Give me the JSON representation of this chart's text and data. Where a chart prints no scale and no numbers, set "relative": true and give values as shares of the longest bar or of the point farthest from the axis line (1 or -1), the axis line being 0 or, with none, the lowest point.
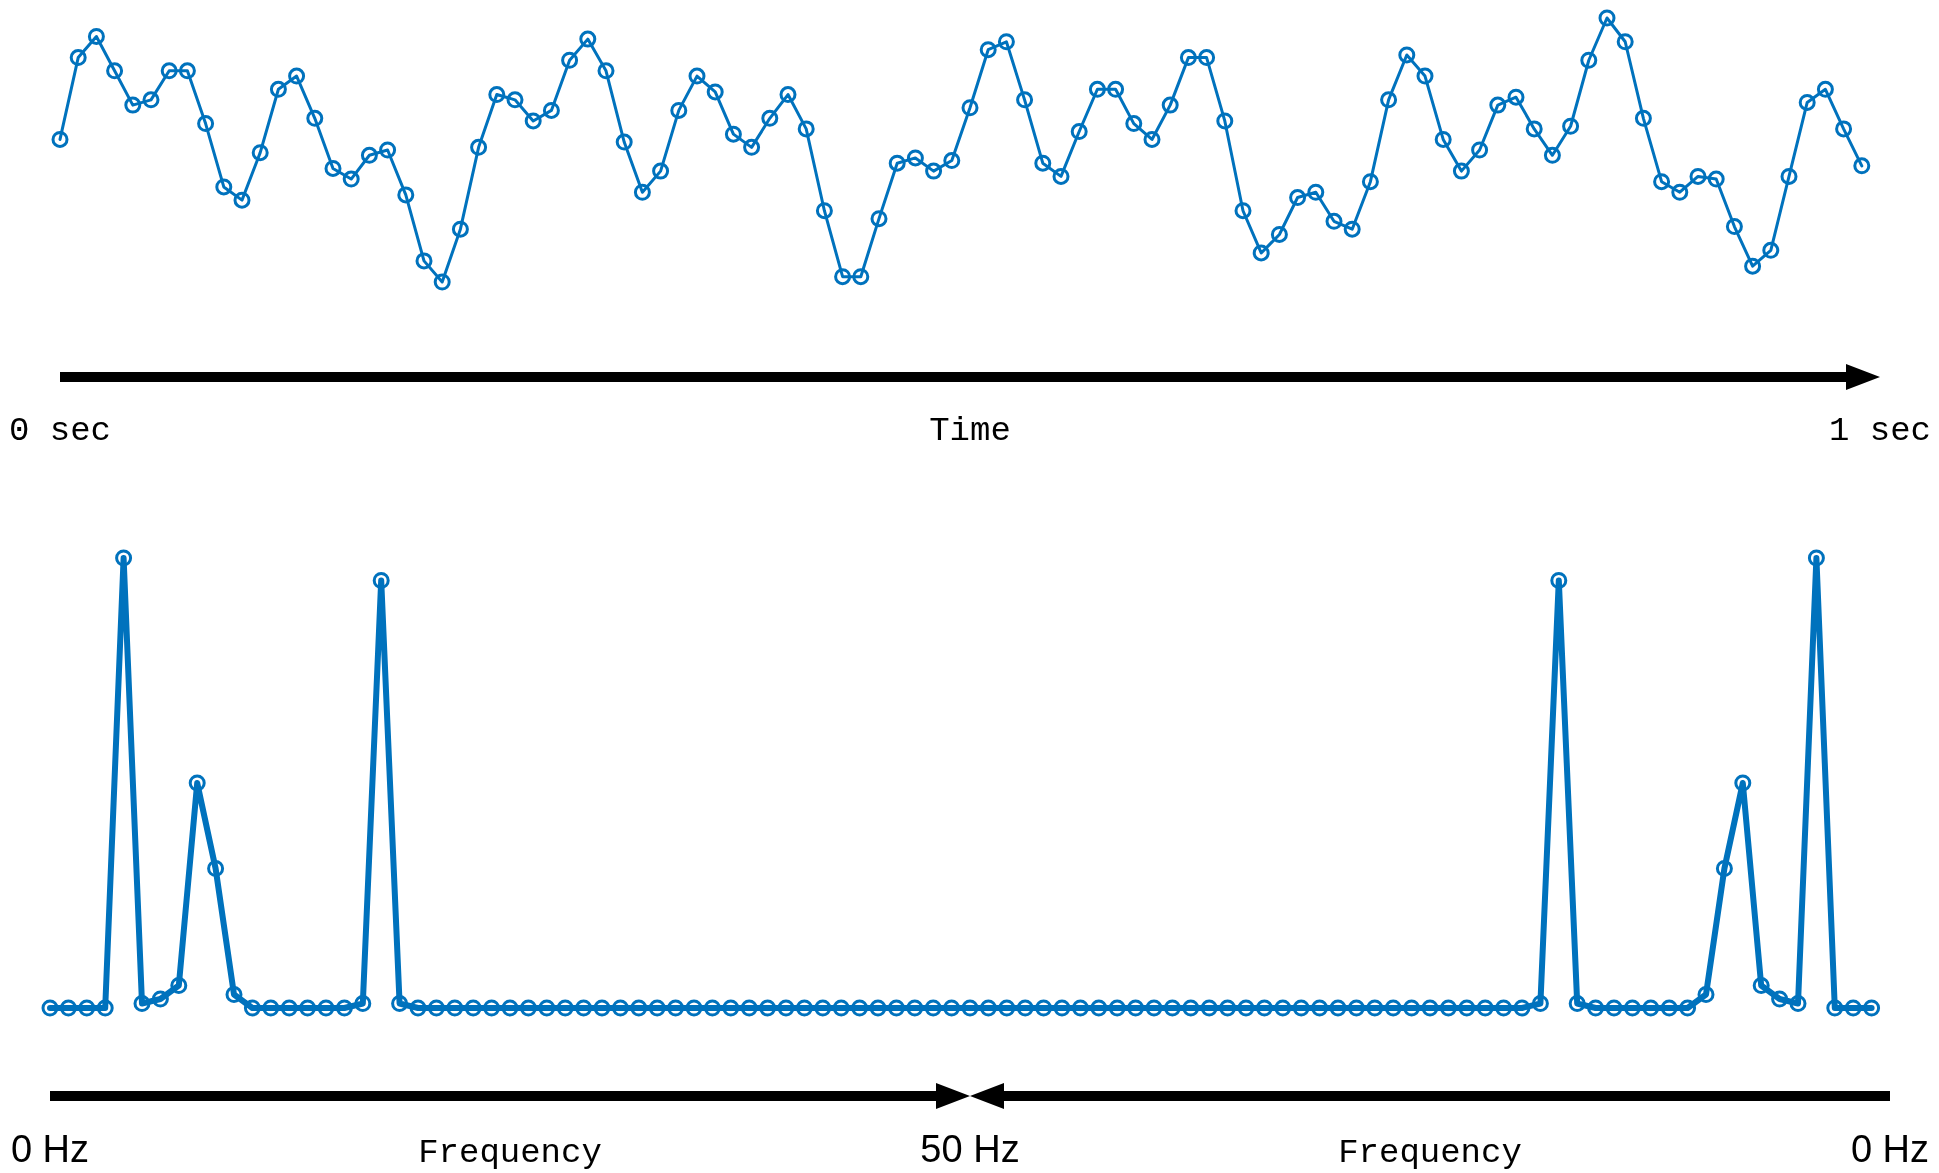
{
  "chart_data": [
    {
      "type": "line",
      "relative": true,
      "xlabel": "Time",
      "xlim": [
        0,
        1
      ],
      "xticks": [
        {
          "value": 0,
          "label": "0 sec"
        },
        {
          "value": 1,
          "label": "1 sec"
        }
      ],
      "marker": "circle",
      "line_style": "solid",
      "x": [
        0,
        0.01,
        0.02,
        0.03,
        0.04,
        0.05,
        0.06,
        0.07,
        0.08,
        0.09,
        0.1,
        0.11,
        0.12,
        0.13,
        0.14,
        0.15,
        0.16,
        0.17,
        0.18,
        0.19,
        0.2,
        0.21,
        0.22,
        0.23,
        0.24,
        0.25,
        0.26,
        0.27,
        0.28,
        0.29,
        0.3,
        0.31,
        0.32,
        0.33,
        0.34,
        0.35,
        0.36,
        0.37,
        0.38,
        0.39,
        0.4,
        0.41,
        0.42,
        0.43,
        0.44,
        0.45,
        0.46,
        0.47,
        0.48,
        0.49,
        0.5,
        0.51,
        0.52,
        0.53,
        0.54,
        0.55,
        0.56,
        0.57,
        0.58,
        0.59,
        0.6,
        0.61,
        0.62,
        0.63,
        0.64,
        0.65,
        0.66,
        0.67,
        0.68,
        0.69,
        0.7,
        0.71,
        0.72,
        0.73,
        0.74,
        0.75,
        0.76,
        0.77,
        0.78,
        0.79,
        0.8,
        0.81,
        0.82,
        0.83,
        0.84,
        0.85,
        0.86,
        0.87,
        0.88,
        0.89,
        0.9,
        0.91,
        0.92,
        0.93,
        0.94,
        0.95,
        0.96,
        0.97,
        0.98,
        0.99
      ],
      "series": [
        {
          "color": "#0072bd",
          "values": [
            0.54,
            0.85,
            0.93,
            0.8,
            0.67,
            0.69,
            0.8,
            0.8,
            0.6,
            0.36,
            0.31,
            0.49,
            0.73,
            0.78,
            0.62,
            0.43,
            0.39,
            0.48,
            0.5,
            0.33,
            0.08,
            0,
            0.2,
            0.51,
            0.71,
            0.69,
            0.61,
            0.65,
            0.84,
            0.92,
            0.8,
            0.53,
            0.34,
            0.42,
            0.65,
            0.78,
            0.72,
            0.56,
            0.51,
            0.62,
            0.71,
            0.58,
            0.27,
            0.02,
            0.02,
            0.24,
            0.45,
            0.47,
            0.42,
            0.46,
            0.66,
            0.88,
            0.91,
            0.69,
            0.45,
            0.4,
            0.57,
            0.73,
            0.73,
            0.6,
            0.54,
            0.67,
            0.85,
            0.85,
            0.61,
            0.27,
            0.11,
            0.18,
            0.32,
            0.34,
            0.23,
            0.2,
            0.38,
            0.69,
            0.86,
            0.78,
            0.54,
            0.42,
            0.5,
            0.67,
            0.7,
            0.58,
            0.48,
            0.59,
            0.84,
            1,
            0.91,
            0.62,
            0.38,
            0.34,
            0.4,
            0.39,
            0.21,
            0.06,
            0.12,
            0.4,
            0.68,
            0.73,
            0.58,
            0.44
          ]
        }
      ]
    },
    {
      "type": "line",
      "relative": true,
      "annotations": [
        "0 Hz",
        "Frequency",
        "50 Hz",
        "Frequency",
        "0 Hz"
      ],
      "marker": "circle",
      "line_style": "solid",
      "categories": [
        null,
        null,
        null,
        null,
        null,
        null,
        null,
        null,
        null,
        null,
        null,
        null,
        null,
        null,
        null,
        null,
        null,
        null,
        null,
        null,
        null,
        null,
        null,
        null,
        null,
        null,
        null,
        null,
        null,
        null,
        null,
        null,
        null,
        null,
        null,
        null,
        null,
        null,
        null,
        null,
        null,
        null,
        null,
        null,
        null,
        null,
        null,
        null,
        null,
        null,
        null,
        null,
        null,
        null,
        null,
        null,
        null,
        null,
        null,
        null,
        null,
        null,
        null,
        null,
        null,
        null,
        null,
        null,
        null,
        null,
        null,
        null,
        null,
        null,
        null,
        null,
        null,
        null,
        null,
        null,
        null,
        null,
        null,
        null,
        null,
        null,
        null,
        null,
        null,
        null,
        null,
        null,
        null,
        null,
        null,
        null,
        null,
        null,
        null,
        null
      ],
      "series": [
        {
          "color": "#0072bd",
          "values": [
            0,
            0,
            0,
            0,
            1,
            0.01,
            0.02,
            0.05,
            0.5,
            0.31,
            0.03,
            0,
            0,
            0,
            0,
            0,
            0,
            0.01,
            0.95,
            0.01,
            0,
            0,
            0,
            0,
            0,
            0,
            0,
            0,
            0,
            0,
            0,
            0,
            0,
            0,
            0,
            0,
            0,
            0,
            0,
            0,
            0,
            0,
            0,
            0,
            0,
            0,
            0,
            0,
            0,
            0,
            0,
            0,
            0,
            0,
            0,
            0,
            0,
            0,
            0,
            0,
            0,
            0,
            0,
            0,
            0,
            0,
            0,
            0,
            0,
            0,
            0,
            0,
            0,
            0,
            0,
            0,
            0,
            0,
            0,
            0,
            0,
            0.01,
            0.95,
            0.01,
            0,
            0,
            0,
            0,
            0,
            0,
            0.03,
            0.31,
            0.5,
            0.05,
            0.02,
            0.01,
            1,
            0,
            0,
            0
          ]
        }
      ]
    }
  ]
}
